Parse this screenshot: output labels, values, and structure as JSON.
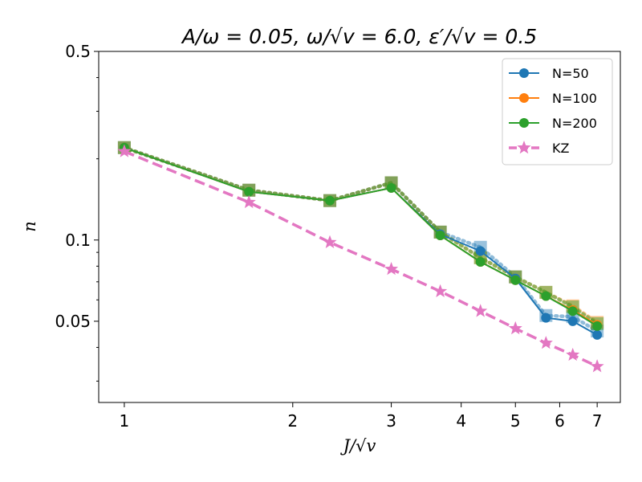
{
  "chart_data": {
    "type": "line",
    "title": "A/ω = 0.05, ω/√v = 6.0, ε′/√v = 0.5",
    "xlabel": "J/√v",
    "ylabel": "n",
    "xscale": "log",
    "yscale": "log",
    "xlim": [
      0.9,
      7.7
    ],
    "ylim": [
      0.025,
      0.5
    ],
    "xticks": [
      1,
      2,
      3,
      4,
      5,
      6,
      7
    ],
    "xtick_labels": [
      "1",
      "2",
      "3",
      "4",
      "5",
      "6",
      "7"
    ],
    "yticks": [
      0.05,
      0.1,
      0.5
    ],
    "ytick_labels": [
      "0.05",
      "0.1",
      "0.5"
    ],
    "legend_position": "top-right",
    "series": [
      {
        "name": "N=50",
        "color": "#1f77b4",
        "marker": "circle",
        "linestyle": "solid",
        "x": [
          1.0,
          1.67,
          2.33,
          3.0,
          3.67,
          4.33,
          5.0,
          5.67,
          6.33,
          7.0
        ],
        "y": [
          0.22,
          0.151,
          0.14,
          0.156,
          0.105,
          0.091,
          0.072,
          0.0515,
          0.05,
          0.0445
        ],
        "companion_y": [
          0.22,
          0.153,
          0.14,
          0.163,
          0.107,
          0.094,
          0.073,
          0.0525,
          0.052,
          0.046
        ]
      },
      {
        "name": "N=100",
        "color": "#ff7f0e",
        "marker": "circle",
        "linestyle": "solid",
        "x": [
          1.0,
          1.67,
          2.33,
          3.0,
          3.67,
          4.33,
          5.0,
          5.67,
          6.33,
          7.0
        ],
        "y": [
          0.22,
          0.151,
          0.14,
          0.156,
          0.104,
          0.083,
          0.071,
          0.062,
          0.055,
          0.0485
        ],
        "companion_y": [
          0.22,
          0.153,
          0.14,
          0.163,
          0.107,
          0.086,
          0.073,
          0.064,
          0.057,
          0.0495
        ]
      },
      {
        "name": "N=200",
        "color": "#2ca02c",
        "marker": "circle",
        "linestyle": "solid",
        "x": [
          1.0,
          1.67,
          2.33,
          3.0,
          3.67,
          4.33,
          5.0,
          5.67,
          6.33,
          7.0
        ],
        "y": [
          0.22,
          0.151,
          0.14,
          0.156,
          0.104,
          0.083,
          0.071,
          0.062,
          0.0545,
          0.048
        ],
        "companion_y": [
          0.22,
          0.153,
          0.14,
          0.163,
          0.107,
          0.086,
          0.073,
          0.064,
          0.0565,
          0.049
        ]
      },
      {
        "name": "KZ",
        "color": "#e377c2",
        "marker": "star",
        "linestyle": "dashed",
        "x": [
          1.0,
          1.67,
          2.33,
          3.0,
          3.67,
          4.33,
          5.0,
          5.67,
          6.33,
          7.0
        ],
        "y": [
          0.213,
          0.138,
          0.098,
          0.078,
          0.0645,
          0.0545,
          0.047,
          0.0415,
          0.0375,
          0.034
        ]
      }
    ]
  }
}
